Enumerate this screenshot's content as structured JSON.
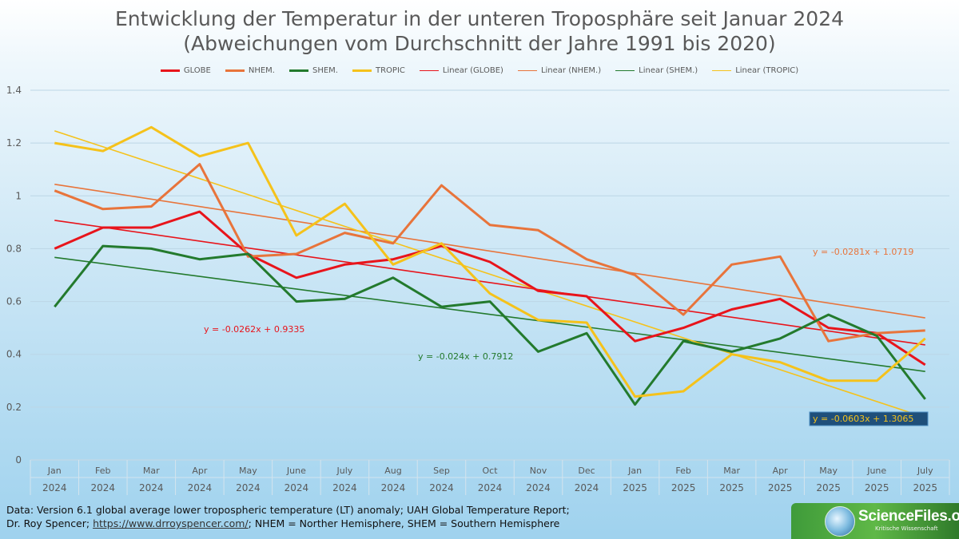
{
  "title_line1": "Entwicklung der Temperatur in der unteren Troposphäre seit Januar 2024",
  "title_line2": "(Abweichungen vom Durchschnitt der Jahre 1991 bis 2020)",
  "chart_data": {
    "type": "line",
    "title": "Entwicklung der Temperatur in der unteren Troposphäre seit Januar 2024 (Abweichungen vom Durchschnitt der Jahre 1991 bis 2020)",
    "categories": [
      "Jan",
      "Feb",
      "Mar",
      "Apr",
      "May",
      "June",
      "July",
      "Aug",
      "Sep",
      "Oct",
      "Nov",
      "Dec",
      "Jan",
      "Feb",
      "Mar",
      "Apr",
      "May",
      "June",
      "July"
    ],
    "category_years": [
      "2024",
      "2024",
      "2024",
      "2024",
      "2024",
      "2024",
      "2024",
      "2024",
      "2024",
      "2024",
      "2024",
      "2024",
      "2025",
      "2025",
      "2025",
      "2025",
      "2025",
      "2025",
      "2025"
    ],
    "ylim": [
      0,
      1.4
    ],
    "yticks": [
      0,
      0.2,
      0.4,
      0.6,
      0.8,
      1,
      1.2,
      1.4
    ],
    "ytick_labels": [
      "0",
      "0.2",
      "0.4",
      "0.6",
      "0.8",
      "1",
      "1.2",
      "1.4"
    ],
    "series": [
      {
        "key": "globe",
        "name": "GLOBE",
        "color": "#e8141b",
        "values": [
          0.8,
          0.88,
          0.88,
          0.94,
          0.78,
          0.69,
          0.74,
          0.76,
          0.81,
          0.75,
          0.64,
          0.62,
          0.45,
          0.5,
          0.57,
          0.61,
          0.5,
          0.48,
          0.36
        ]
      },
      {
        "key": "nhem",
        "name": "NHEM.",
        "color": "#e8743b",
        "values": [
          1.02,
          0.95,
          0.96,
          1.12,
          0.77,
          0.78,
          0.86,
          0.82,
          1.04,
          0.89,
          0.87,
          0.76,
          0.7,
          0.55,
          0.74,
          0.77,
          0.45,
          0.48,
          0.49
        ]
      },
      {
        "key": "shem",
        "name": "SHEM.",
        "color": "#237a2d",
        "values": [
          0.58,
          0.81,
          0.8,
          0.76,
          0.78,
          0.6,
          0.61,
          0.69,
          0.58,
          0.6,
          0.41,
          0.48,
          0.21,
          0.45,
          0.41,
          0.46,
          0.55,
          0.47,
          0.23
        ]
      },
      {
        "key": "tropic",
        "name": "TROPIC",
        "color": "#f5c21b",
        "values": [
          1.2,
          1.17,
          1.26,
          1.15,
          1.2,
          0.85,
          0.97,
          0.74,
          0.82,
          0.63,
          0.53,
          0.52,
          0.24,
          0.26,
          0.4,
          0.37,
          0.3,
          0.3,
          0.46
        ]
      }
    ],
    "trends": [
      {
        "key": "globe",
        "name": "Linear (GLOBE)",
        "color": "#e8141b",
        "slope": -0.0262,
        "intercept": 0.9335,
        "equation": "y = -0.0262x + 0.9335"
      },
      {
        "key": "nhem",
        "name": "Linear (NHEM.)",
        "color": "#e8743b",
        "slope": -0.0281,
        "intercept": 1.0719,
        "equation": "y = -0.0281x + 1.0719"
      },
      {
        "key": "shem",
        "name": "Linear (SHEM.)",
        "color": "#237a2d",
        "slope": -0.024,
        "intercept": 0.7912,
        "equation": "y = -0.024x + 0.7912"
      },
      {
        "key": "tropic",
        "name": "Linear (TROPIC)",
        "color": "#f5c21b",
        "slope": -0.0603,
        "intercept": 1.3065,
        "equation": "y = -0.0603x + 1.3065"
      }
    ]
  },
  "footer": {
    "line1": "Data: Version 6.1 global average lower tropospheric temperature (LT) anomaly; UAH Global Temperature Report;",
    "line2_pre": "Dr. Roy Spencer; ",
    "link": "https://www.drroyspencer.com/",
    "line2_post": "; NHEM = Norther Hemisphere, SHEM = Southern Hemisphere"
  },
  "logo": {
    "name": "ScienceFiles.org",
    "tagline": "Kritische Wissenschaft"
  }
}
